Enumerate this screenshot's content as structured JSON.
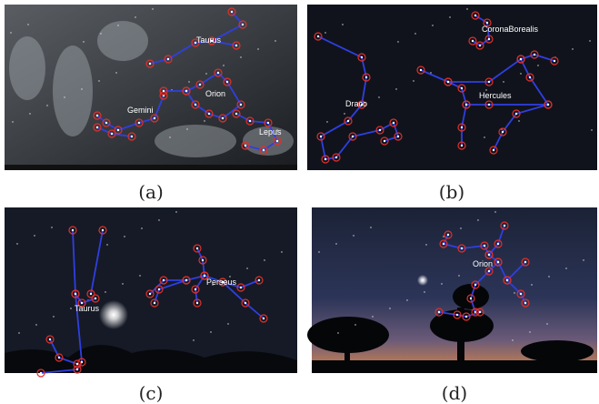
{
  "panels": [
    {
      "label": "(a)",
      "constellations": [
        "Taurus",
        "Gemini",
        "Orion",
        "Lepus"
      ]
    },
    {
      "label": "(b)",
      "constellations": [
        "CoronaBorealis",
        "Draco",
        "Hercules"
      ]
    },
    {
      "label": "(c)",
      "constellations": [
        "Taurus",
        "Perseus"
      ]
    },
    {
      "label": "(d)",
      "constellations": [
        "Orion"
      ]
    }
  ]
}
